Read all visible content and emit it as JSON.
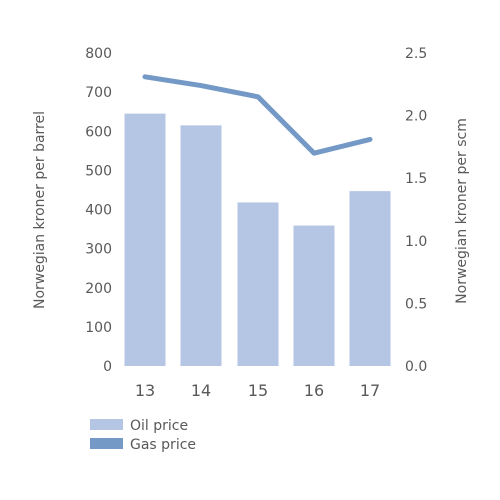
{
  "chart_data": {
    "type": "bar+line",
    "title": "",
    "categories": [
      "13",
      "14",
      "15",
      "16",
      "17"
    ],
    "series": [
      {
        "name": "Oil price",
        "type": "bar",
        "axis": "left",
        "color": "#b4c6e4",
        "values": [
          645,
          615,
          418,
          359,
          447
        ]
      },
      {
        "name": "Gas price",
        "type": "line",
        "axis": "right",
        "color": "#7499c6",
        "values": [
          2.31,
          2.24,
          2.15,
          1.7,
          1.81
        ]
      }
    ],
    "y_left": {
      "label": "Norwegian kroner per barrel",
      "min": 0,
      "max": 800,
      "ticks": [
        "0",
        "100",
        "200",
        "300",
        "400",
        "500",
        "600",
        "700",
        "800"
      ]
    },
    "y_right": {
      "label": "Norwegian kroner per scm",
      "min": 0,
      "max": 2.5,
      "ticks": [
        "0.0",
        "0.5",
        "1.0",
        "1.5",
        "2.0",
        "2.5"
      ]
    },
    "grid": false,
    "legend_position": "bottom-left"
  }
}
